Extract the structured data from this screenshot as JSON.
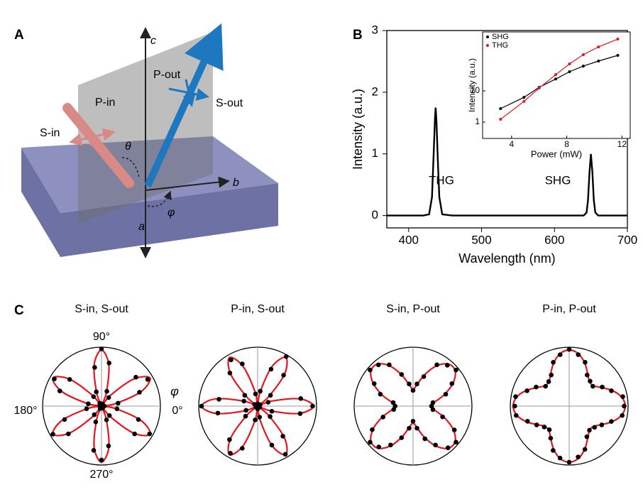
{
  "panel_labels": [
    "A",
    "B",
    "C"
  ],
  "diagram_labels": {
    "c": "c",
    "b": "b",
    "a": "a",
    "p_out": "P-out",
    "s_out": "S-out",
    "p_in": "P-in",
    "s_in": "S-in",
    "theta": "θ",
    "phi": "φ"
  },
  "chart_data": [
    {
      "type": "line",
      "xlabel": "Wavelength (nm)",
      "ylabel": "Intensity (a.u.)",
      "x": [
        370,
        420,
        428,
        432,
        434,
        436,
        437,
        438,
        440,
        442,
        446,
        460,
        630,
        640,
        644,
        646,
        648,
        650,
        652,
        654,
        656,
        660,
        680,
        700
      ],
      "series": [
        {
          "color": "#000000",
          "values": [
            0,
            0,
            0.02,
            0.3,
            0.9,
            1.55,
            1.75,
            1.55,
            0.9,
            0.3,
            0.02,
            0,
            0,
            0,
            0.05,
            0.25,
            0.7,
            1.0,
            0.7,
            0.25,
            0.05,
            0,
            0,
            0
          ]
        }
      ],
      "xlim": [
        370,
        700
      ],
      "ylim": [
        -0.2,
        3
      ],
      "xticks": [
        400,
        500,
        600,
        700
      ],
      "yticks": [
        0,
        1,
        2,
        3
      ],
      "annotations": [
        "THG",
        "SHG"
      ]
    },
    {
      "type": "line",
      "xlabel": "Power (mW)",
      "ylabel": "Intensity (a.u.)",
      "log_y": true,
      "legend": "upper left",
      "xlim": [
        1.9,
        12.6
      ],
      "ylim": [
        0.3,
        770
      ],
      "xticks": [
        4,
        8,
        12
      ],
      "yticks": [
        1,
        10
      ],
      "x": [
        3.2,
        4.9,
        6.0,
        7.2,
        8.2,
        9.2,
        10.3,
        11.7
      ],
      "series": [
        {
          "name": "SHG",
          "color": "#000000",
          "values": [
            2.7,
            6.2,
            13,
            24,
            41,
            62,
            90,
            137
          ]
        },
        {
          "name": "THG",
          "color": "#e8141c",
          "values": [
            1.23,
            4.6,
            12.3,
            33,
            73,
            144,
            255,
            455
          ]
        }
      ]
    },
    {
      "type": "polar",
      "title": "S-in, S-out",
      "rlim": [
        0,
        1.05
      ],
      "theta": [
        0,
        10,
        20,
        30,
        40,
        50,
        60,
        70,
        80,
        90,
        100,
        110,
        120,
        130,
        140,
        150,
        160,
        170,
        180,
        190,
        200,
        210,
        220,
        230,
        240,
        250,
        260,
        270,
        280,
        290,
        300,
        310,
        320,
        330,
        340,
        350
      ],
      "angle_ticks": [
        {
          "value": 90,
          "label": "90°"
        },
        {
          "value": 180,
          "label": "180°"
        },
        {
          "value": 0,
          "label": "0°"
        },
        {
          "value": 270,
          "label": "270°"
        }
      ],
      "angle_label": "φ",
      "series": [
        {
          "style": "line",
          "color": "#e8141c",
          "values": [
            0,
            0.25,
            0.75,
            1,
            0.75,
            0.25,
            0,
            0.25,
            0.75,
            1,
            0.75,
            0.25,
            0,
            0.25,
            0.75,
            1,
            0.75,
            0.25,
            0,
            0.25,
            0.75,
            1,
            0.75,
            0.25,
            0,
            0.25,
            0.75,
            1,
            0.75,
            0.25,
            0,
            0.25,
            0.75,
            1,
            0.75,
            0.25
          ]
        },
        {
          "style": "points",
          "color": "#000000",
          "values": [
            0.05,
            0.3,
            0.72,
            0.95,
            0.8,
            0.2,
            0.04,
            0.28,
            0.78,
            1.02,
            0.7,
            0.27,
            0.06,
            0.22,
            0.74,
            0.97,
            0.79,
            0.24,
            0.03,
            0.27,
            0.7,
            1.0,
            0.77,
            0.2,
            0.05,
            0.3,
            0.8,
            0.96,
            0.72,
            0.26,
            0.04,
            0.22,
            0.77,
            0.99,
            0.7,
            0.28
          ]
        }
      ]
    },
    {
      "type": "polar",
      "title": "P-in, S-out",
      "rlim": [
        0,
        1.05
      ],
      "theta": [
        0,
        10,
        20,
        30,
        40,
        50,
        60,
        70,
        80,
        90,
        100,
        110,
        120,
        130,
        140,
        150,
        160,
        170,
        180,
        190,
        200,
        210,
        220,
        230,
        240,
        250,
        260,
        270,
        280,
        290,
        300,
        310,
        320,
        330,
        340,
        350
      ],
      "series": [
        {
          "style": "line",
          "color": "#e8141c",
          "values": [
            1,
            0.75,
            0.25,
            0,
            0.25,
            0.75,
            1,
            0.75,
            0.25,
            0,
            0.25,
            0.75,
            1,
            0.75,
            0.25,
            0,
            0.25,
            0.75,
            1,
            0.75,
            0.25,
            0,
            0.25,
            0.75,
            1,
            0.75,
            0.25,
            0,
            0.25,
            0.75,
            1,
            0.75,
            0.25,
            0,
            0.25,
            0.75
          ]
        },
        {
          "style": "points",
          "color": "#000000",
          "values": [
            0.98,
            0.78,
            0.2,
            0.05,
            0.3,
            0.72,
            1.02,
            0.7,
            0.27,
            0.04,
            0.22,
            0.8,
            0.95,
            0.77,
            0.3,
            0.06,
            0.26,
            0.7,
            1.0,
            0.72,
            0.22,
            0.03,
            0.28,
            0.78,
            0.97,
            0.8,
            0.25,
            0.05,
            0.2,
            0.74,
            0.99,
            0.7,
            0.29,
            0.04,
            0.27,
            0.77
          ]
        }
      ]
    },
    {
      "type": "polar",
      "title": "S-in, P-out",
      "rlim": [
        0,
        1.05
      ],
      "theta": [
        0,
        10,
        20,
        30,
        40,
        50,
        60,
        70,
        80,
        90,
        100,
        110,
        120,
        130,
        140,
        150,
        160,
        170,
        180,
        190,
        200,
        210,
        220,
        230,
        240,
        250,
        260,
        270,
        280,
        290,
        300,
        310,
        320,
        330,
        340,
        350
      ],
      "series": [
        {
          "style": "line",
          "color": "#e8141c",
          "values": [
            0.3,
            0.382,
            0.589,
            0.825,
            0.979,
            0.979,
            0.825,
            0.589,
            0.382,
            0.3,
            0.382,
            0.589,
            0.825,
            0.979,
            0.979,
            0.825,
            0.589,
            0.382,
            0.3,
            0.382,
            0.589,
            0.825,
            0.979,
            0.979,
            0.825,
            0.589,
            0.382,
            0.3,
            0.382,
            0.589,
            0.825,
            0.979,
            0.979,
            0.825,
            0.589,
            0.382
          ]
        },
        {
          "style": "points",
          "color": "#000000",
          "values": [
            0.33,
            0.36,
            0.62,
            0.8,
            1.0,
            0.95,
            0.85,
            0.56,
            0.4,
            0.28,
            0.4,
            0.6,
            0.85,
            0.96,
            1.0,
            0.8,
            0.62,
            0.36,
            0.32,
            0.35,
            0.57,
            0.84,
            1.0,
            0.95,
            0.8,
            0.6,
            0.4,
            0.27,
            0.4,
            0.62,
            0.8,
            0.97,
            1.0,
            0.85,
            0.56,
            0.36
          ]
        }
      ]
    },
    {
      "type": "polar",
      "title": "P-in, P-out",
      "rlim": [
        0,
        1.05
      ],
      "theta": [
        0,
        10,
        20,
        30,
        40,
        50,
        60,
        70,
        80,
        90,
        100,
        110,
        120,
        130,
        140,
        150,
        160,
        170,
        180,
        190,
        200,
        210,
        220,
        230,
        240,
        250,
        260,
        270,
        280,
        290,
        300,
        310,
        320,
        330,
        340,
        350
      ],
      "series": [
        {
          "style": "line",
          "color": "#e8141c",
          "values": [
            1,
            0.947,
            0.814,
            0.66,
            0.564,
            0.564,
            0.66,
            0.814,
            0.947,
            1,
            0.947,
            0.814,
            0.66,
            0.564,
            0.564,
            0.66,
            0.814,
            0.947,
            1,
            0.947,
            0.814,
            0.66,
            0.564,
            0.564,
            0.66,
            0.814,
            0.947,
            1,
            0.947,
            0.814,
            0.66,
            0.564,
            0.564,
            0.66,
            0.814,
            0.947
          ]
        },
        {
          "style": "points",
          "color": "#000000",
          "values": [
            0.98,
            0.97,
            0.8,
            0.68,
            0.55,
            0.58,
            0.64,
            0.83,
            0.93,
            1.01,
            0.93,
            0.83,
            0.64,
            0.57,
            0.55,
            0.68,
            0.8,
            0.97,
            0.97,
            0.96,
            0.79,
            0.67,
            0.58,
            0.55,
            0.66,
            0.84,
            0.94,
            1.0,
            0.92,
            0.82,
            0.63,
            0.56,
            0.59,
            0.67,
            0.8,
            0.96
          ]
        }
      ]
    }
  ]
}
